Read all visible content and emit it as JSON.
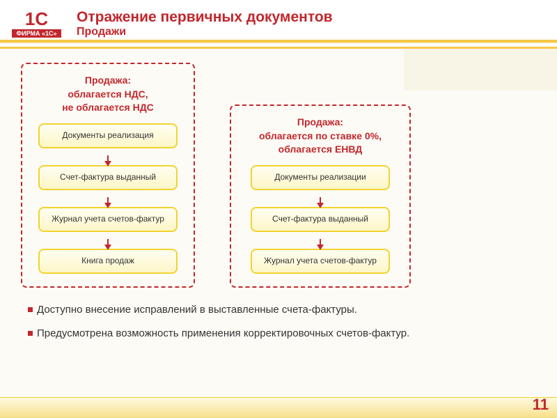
{
  "logo": {
    "top": "1С",
    "bottom": "ФИРМА «1С»"
  },
  "header": {
    "title": "Отражение первичных документов",
    "subtitle": "Продажи"
  },
  "colors": {
    "accent_red": "#c1272d",
    "box_border": "#f2d330",
    "box_fill_top": "#fffef2",
    "box_fill_bottom": "#fdf6c7",
    "background": "#fdfbf5",
    "footer_grad_top": "#fff9e0",
    "footer_grad_bottom": "#f7e08a"
  },
  "panel_a": {
    "title_line1": "Продажа:",
    "title_line2": "облагается НДС,",
    "title_line3": "не облагается НДС",
    "boxes": [
      "Документы реализация",
      "Счет-фактура выданный",
      "Журнал учета счетов-фактур",
      "Книга продаж"
    ]
  },
  "panel_b": {
    "title_line1": "Продажа:",
    "title_line2": "облагается по ставке 0%,",
    "title_line3": "облагается ЕНВД",
    "boxes": [
      "Документы реализации",
      "Счет-фактура выданный",
      "Журнал учета счетов-фактур"
    ]
  },
  "bullets": [
    "Доступно внесение исправлений в выставленные счета-фактуры.",
    "Предусмотрена возможность применения корректировочных счетов-фактур."
  ],
  "page_number": "11"
}
